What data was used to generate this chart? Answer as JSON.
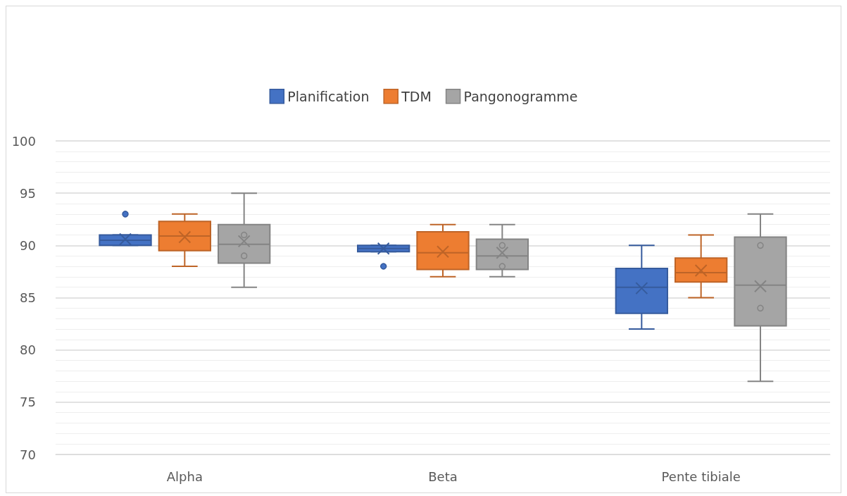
{
  "chart_data": {
    "type": "box",
    "categories": [
      "Alpha",
      "Beta",
      "Pente tibiale"
    ],
    "series": [
      {
        "name": "Planification",
        "color": "#4472c4",
        "boxes": [
          {
            "low": 90,
            "q1": 90,
            "median": 90.5,
            "q3": 91,
            "high": 91,
            "mean": 90.6,
            "outliers": [
              93
            ]
          },
          {
            "low": 89.4,
            "q1": 89.4,
            "median": 89.7,
            "q3": 90,
            "high": 90,
            "mean": 89.7,
            "outliers": [
              88
            ]
          },
          {
            "low": 82,
            "q1": 83.5,
            "median": 86,
            "q3": 87.8,
            "high": 90,
            "mean": 85.9
          }
        ]
      },
      {
        "name": "TDM",
        "color": "#ed7d31",
        "boxes": [
          {
            "low": 88,
            "q1": 89.5,
            "median": 90.9,
            "q3": 92.3,
            "high": 93,
            "mean": 90.8
          },
          {
            "low": 87,
            "q1": 87.7,
            "median": 89.3,
            "q3": 91.3,
            "high": 92,
            "mean": 89.4
          },
          {
            "low": 85,
            "q1": 86.5,
            "median": 87.4,
            "q3": 88.8,
            "high": 91,
            "mean": 87.6
          }
        ]
      },
      {
        "name": "Pangonogramme",
        "color": "#a5a5a5",
        "boxes": [
          {
            "low": 86,
            "q1": 88.3,
            "median": 90.1,
            "q3": 92,
            "high": 95,
            "mean": 90.4,
            "outliers": [
              91,
              89
            ]
          },
          {
            "low": 87,
            "q1": 87.7,
            "median": 89,
            "q3": 90.6,
            "high": 92,
            "mean": 89.3,
            "outliers": [
              90,
              88
            ]
          },
          {
            "low": 77,
            "q1": 82.3,
            "median": 86.2,
            "q3": 90.8,
            "high": 93,
            "mean": 86.1,
            "outliers": [
              90,
              84
            ]
          }
        ]
      }
    ],
    "ylim": [
      70,
      100
    ],
    "yticks": [
      70,
      75,
      80,
      85,
      90,
      95,
      100
    ],
    "grid": true,
    "legend": "top",
    "marker": "cross"
  }
}
